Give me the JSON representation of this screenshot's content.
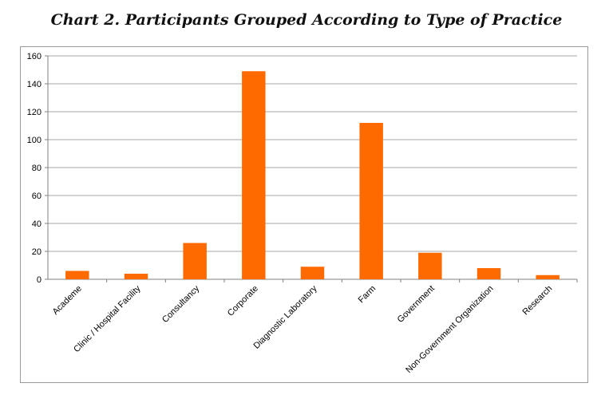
{
  "chart_data": {
    "type": "bar",
    "title": "Chart 2. Participants Grouped According to Type of Practice",
    "categories": [
      "Academe",
      "Clinic / Hospital Facility",
      "Consultancy",
      "Corporate",
      "Diagnostic Laboratory",
      "Farm",
      "Government",
      "Non-Government Organization",
      "Research"
    ],
    "values": [
      6,
      4,
      26,
      149,
      9,
      112,
      19,
      8,
      3
    ],
    "ylim": [
      0,
      160
    ],
    "yticks": [
      "0",
      "20",
      "40",
      "60",
      "80",
      "100",
      "120",
      "140",
      "160"
    ],
    "xlabel": "",
    "ylabel": "",
    "grid": true,
    "legend": "none",
    "bar_color": "#ff6a00",
    "grid_color": "#a6a6a6"
  }
}
